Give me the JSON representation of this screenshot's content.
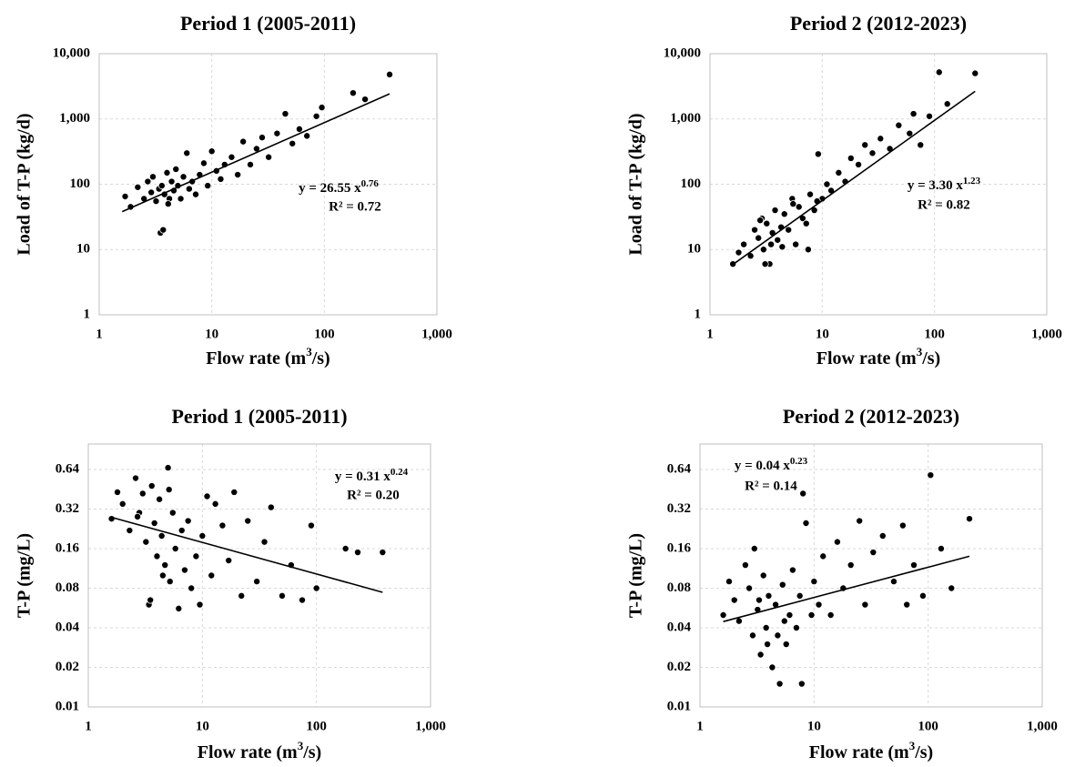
{
  "chart_data": [
    {
      "type": "scatter",
      "title": "Period 1 (2005-2011)",
      "x_label": {
        "text": "Flow rate (m",
        "sup": "3",
        "tail": "/s)"
      },
      "y_label": "Load of T-P (kg/d)",
      "log_x": true,
      "log_y": true,
      "grid": true,
      "color": "#000000",
      "xlim": [
        1,
        1000
      ],
      "ylim": [
        1,
        10000
      ],
      "xticks": [
        1,
        10,
        100,
        {
          "value": 1000,
          "label": "1,000"
        }
      ],
      "yticks": [
        1,
        10,
        100,
        {
          "value": 1000,
          "label": "1,000"
        },
        {
          "value": 10000,
          "label": "10,000"
        }
      ],
      "x": [
        1.7,
        1.9,
        2.2,
        2.5,
        2.7,
        2.9,
        3.0,
        3.2,
        3.4,
        3.5,
        3.6,
        3.8,
        4.0,
        4.2,
        4.4,
        4.6,
        4.8,
        5.0,
        5.3,
        5.6,
        6.0,
        6.3,
        6.7,
        7.2,
        7.8,
        8.5,
        9.2,
        10,
        11,
        12,
        13,
        15,
        17,
        19,
        22,
        25,
        28,
        32,
        38,
        45,
        52,
        60,
        70,
        85,
        95,
        180,
        230,
        380,
        4.1,
        3.7
      ],
      "values": [
        65,
        45,
        90,
        60,
        110,
        75,
        130,
        55,
        85,
        18,
        95,
        70,
        150,
        60,
        110,
        80,
        170,
        95,
        60,
        130,
        300,
        85,
        110,
        70,
        140,
        210,
        95,
        320,
        160,
        120,
        200,
        260,
        140,
        450,
        200,
        350,
        520,
        260,
        600,
        1200,
        420,
        700,
        550,
        1100,
        1500,
        2500,
        2000,
        4800,
        50,
        20
      ],
      "trend_line": {
        "x": [
          1.6,
          380
        ],
        "y": [
          38,
          2424
        ]
      },
      "annotation": {
        "equation": "y = 26.55 x",
        "exponent": "0.76",
        "r_squared": "R² = 0.72"
      }
    },
    {
      "type": "scatter",
      "title": "Period 2 (2012-2023)",
      "x_label": {
        "text": "Flow rate (m",
        "sup": "3",
        "tail": "/s)"
      },
      "y_label": "Load of T-P (kg/d)",
      "log_x": true,
      "log_y": true,
      "grid": true,
      "color": "#000000",
      "xlim": [
        1,
        1000
      ],
      "ylim": [
        1,
        10000
      ],
      "xticks": [
        1,
        10,
        100,
        {
          "value": 1000,
          "label": "1,000"
        }
      ],
      "yticks": [
        1,
        10,
        100,
        {
          "value": 1000,
          "label": "1,000"
        },
        {
          "value": 10000,
          "label": "10,000"
        }
      ],
      "x": [
        1.6,
        1.8,
        2.0,
        2.3,
        2.5,
        2.7,
        2.9,
        3.0,
        3.2,
        3.4,
        3.6,
        3.8,
        4.0,
        4.3,
        4.6,
        5.0,
        5.4,
        5.8,
        6.2,
        6.7,
        7.2,
        7.8,
        8.5,
        9.2,
        10,
        11,
        12,
        14,
        16,
        18,
        21,
        24,
        28,
        33,
        40,
        48,
        60,
        65,
        75,
        90,
        110,
        130,
        230,
        3.1,
        4.4,
        5.5,
        2.8,
        3.5,
        7.5,
        9.0
      ],
      "values": [
        6,
        9,
        12,
        8,
        20,
        15,
        30,
        10,
        25,
        6,
        18,
        40,
        14,
        22,
        35,
        20,
        60,
        12,
        45,
        30,
        25,
        70,
        40,
        290,
        60,
        100,
        80,
        150,
        110,
        250,
        200,
        400,
        300,
        500,
        350,
        800,
        600,
        1200,
        400,
        1100,
        5200,
        1700,
        5000,
        6,
        11,
        50,
        28,
        12,
        10,
        55
      ],
      "trend_line": {
        "x": [
          1.6,
          230
        ],
        "y": [
          5.9,
          2650
        ]
      },
      "annotation": {
        "equation": "y = 3.30 x",
        "exponent": "1.23",
        "r_squared": "R² = 0.82"
      }
    },
    {
      "type": "scatter",
      "title": "Period 1 (2005-2011)",
      "x_label": {
        "text": "Flow rate (m",
        "sup": "3",
        "tail": "/s)"
      },
      "y_label": "T-P (mg/L)",
      "log_x": true,
      "log_y": true,
      "grid": true,
      "color": "#000000",
      "xlim": [
        1,
        1000
      ],
      "ylim": [
        0.01,
        1
      ],
      "xticks": [
        1,
        10,
        100,
        {
          "value": 1000,
          "label": "1,000"
        }
      ],
      "yticks": [
        0.01,
        0.02,
        0.04,
        0.08,
        0.16,
        0.32,
        0.64
      ],
      "x": [
        1.6,
        1.8,
        2.0,
        2.3,
        2.6,
        2.8,
        3.0,
        3.2,
        3.4,
        3.6,
        3.8,
        4.0,
        4.2,
        4.4,
        4.7,
        5.0,
        5.2,
        5.5,
        5.8,
        6.2,
        6.6,
        7.0,
        7.5,
        8.0,
        8.8,
        9.5,
        10,
        11,
        12,
        13,
        15,
        17,
        19,
        22,
        25,
        30,
        35,
        40,
        50,
        60,
        75,
        90,
        100,
        180,
        230,
        380,
        3.5,
        4.5,
        5.1,
        2.7
      ],
      "values": [
        0.27,
        0.43,
        0.35,
        0.22,
        0.55,
        0.3,
        0.42,
        0.18,
        0.06,
        0.48,
        0.25,
        0.14,
        0.38,
        0.2,
        0.12,
        0.66,
        0.09,
        0.3,
        0.16,
        0.056,
        0.22,
        0.11,
        0.26,
        0.08,
        0.14,
        0.06,
        0.2,
        0.4,
        0.1,
        0.35,
        0.24,
        0.13,
        0.43,
        0.07,
        0.26,
        0.09,
        0.18,
        0.33,
        0.07,
        0.12,
        0.065,
        0.24,
        0.08,
        0.16,
        0.15,
        0.15,
        0.065,
        0.1,
        0.45,
        0.28
      ],
      "trend_line": {
        "x": [
          1.6,
          380
        ],
        "y": [
          0.277,
          0.0745
        ]
      },
      "annotation": {
        "equation": "y = 0.31 x",
        "exponent": "0.24",
        "r_squared": "R² = 0.20"
      }
    },
    {
      "type": "scatter",
      "title": "Period 2 (2012-2023)",
      "x_label": {
        "text": "Flow rate (m",
        "sup": "3",
        "tail": "/s)"
      },
      "y_label": "T-P (mg/L)",
      "log_x": true,
      "log_y": true,
      "grid": true,
      "color": "#000000",
      "xlim": [
        1,
        1000
      ],
      "ylim": [
        0.01,
        1
      ],
      "xticks": [
        1,
        10,
        100,
        {
          "value": 1000,
          "label": "1,000"
        }
      ],
      "yticks": [
        0.01,
        0.02,
        0.04,
        0.08,
        0.16,
        0.32,
        0.64
      ],
      "x": [
        1.6,
        1.8,
        2.0,
        2.2,
        2.5,
        2.7,
        2.9,
        3.0,
        3.2,
        3.4,
        3.6,
        3.8,
        4.0,
        4.3,
        4.6,
        5.0,
        5.3,
        5.7,
        6.1,
        6.5,
        7.0,
        7.5,
        8.0,
        8.5,
        9.5,
        10,
        11,
        12,
        14,
        16,
        18,
        21,
        25,
        28,
        33,
        40,
        50,
        60,
        65,
        75,
        90,
        105,
        130,
        160,
        230,
        4.8,
        7.8,
        3.3,
        3.9,
        5.5
      ],
      "values": [
        0.05,
        0.09,
        0.065,
        0.045,
        0.12,
        0.08,
        0.035,
        0.16,
        0.055,
        0.025,
        0.1,
        0.04,
        0.07,
        0.02,
        0.06,
        0.015,
        0.085,
        0.03,
        0.05,
        0.11,
        0.04,
        0.07,
        0.42,
        0.25,
        0.05,
        0.09,
        0.06,
        0.14,
        0.05,
        0.18,
        0.08,
        0.12,
        0.26,
        0.06,
        0.15,
        0.2,
        0.09,
        0.24,
        0.06,
        0.12,
        0.07,
        0.58,
        0.16,
        0.08,
        0.27,
        0.035,
        0.015,
        0.065,
        0.03,
        0.045
      ],
      "trend_line": {
        "x": [
          1.6,
          230
        ],
        "y": [
          0.0446,
          0.14
        ]
      },
      "annotation": {
        "equation": "y = 0.04 x",
        "exponent": "0.23",
        "r_squared": "R² = 0.14"
      }
    }
  ]
}
